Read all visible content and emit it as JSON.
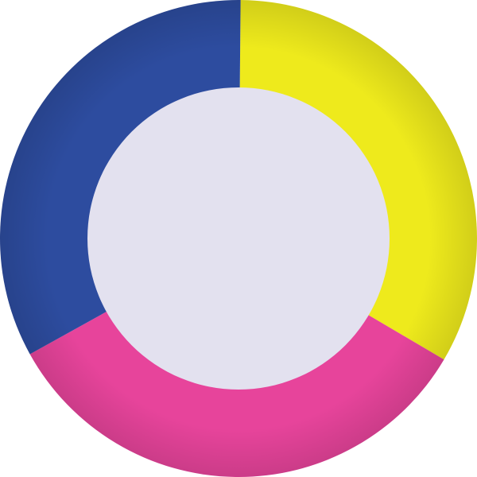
{
  "object": {
    "segments": [
      {
        "name": "blue",
        "color": "#2d4c9f"
      },
      {
        "name": "yellow",
        "color": "#eeea1c"
      },
      {
        "name": "pink",
        "color": "#e7449b"
      }
    ],
    "center_color": "#e3e1ef",
    "background_color": "#ffffff"
  }
}
